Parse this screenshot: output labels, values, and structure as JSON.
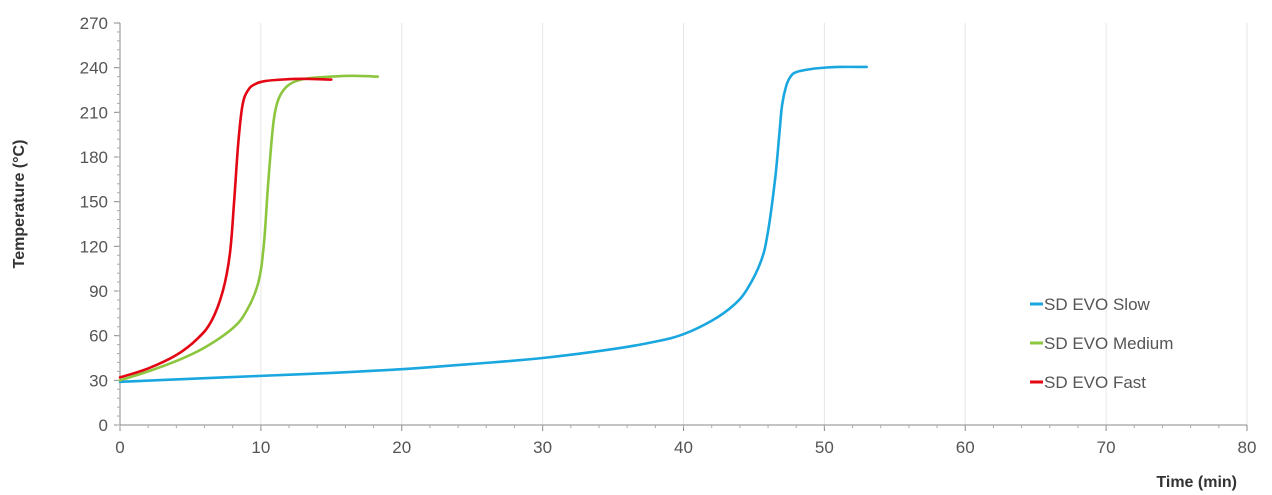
{
  "chart_data": {
    "type": "line",
    "xlabel": "Time (min)",
    "ylabel": "Temperature (°C)",
    "xlim": [
      0,
      80
    ],
    "ylim": [
      0,
      270
    ],
    "xticks": [
      0,
      10,
      20,
      30,
      40,
      50,
      60,
      70,
      80
    ],
    "yticks": [
      0,
      30,
      60,
      90,
      120,
      150,
      180,
      210,
      240,
      270
    ],
    "grid": "vertical",
    "legend_position": "bottom-right",
    "series": [
      {
        "name": "SD EVO Slow",
        "color": "#1aa7e0",
        "x": [
          0,
          5,
          10,
          15,
          20,
          25,
          30,
          35,
          38,
          40,
          42,
          43.5,
          44.5,
          45.5,
          46,
          46.5,
          46.8,
          47,
          47.3,
          47.6,
          48,
          49,
          50,
          51,
          53
        ],
        "y": [
          29,
          31,
          33,
          35,
          37.5,
          41,
          45,
          51,
          56,
          61,
          70,
          80,
          91,
          110,
          130,
          165,
          195,
          215,
          228,
          234,
          237,
          239,
          240,
          240.5,
          240.5
        ]
      },
      {
        "name": "SD EVO Medium",
        "color": "#8cc63f",
        "x": [
          0,
          2,
          4,
          6,
          8,
          9,
          9.8,
          10.2,
          10.5,
          10.8,
          11,
          11.3,
          11.8,
          12.5,
          13.5,
          15,
          16.5,
          18.3
        ],
        "y": [
          30,
          36,
          43,
          52,
          65,
          77,
          95,
          120,
          160,
          195,
          210,
          220,
          227,
          231,
          233,
          234,
          234.5,
          234
        ]
      },
      {
        "name": "SD EVO Fast",
        "color": "#e30613",
        "x": [
          0,
          2,
          4,
          5.5,
          6.5,
          7.3,
          7.8,
          8.1,
          8.4,
          8.7,
          9.1,
          9.6,
          10.3,
          11.5,
          13,
          15
        ],
        "y": [
          32,
          38,
          47,
          58,
          70,
          90,
          115,
          150,
          190,
          215,
          225,
          229,
          231,
          232,
          232.5,
          232
        ]
      }
    ]
  }
}
